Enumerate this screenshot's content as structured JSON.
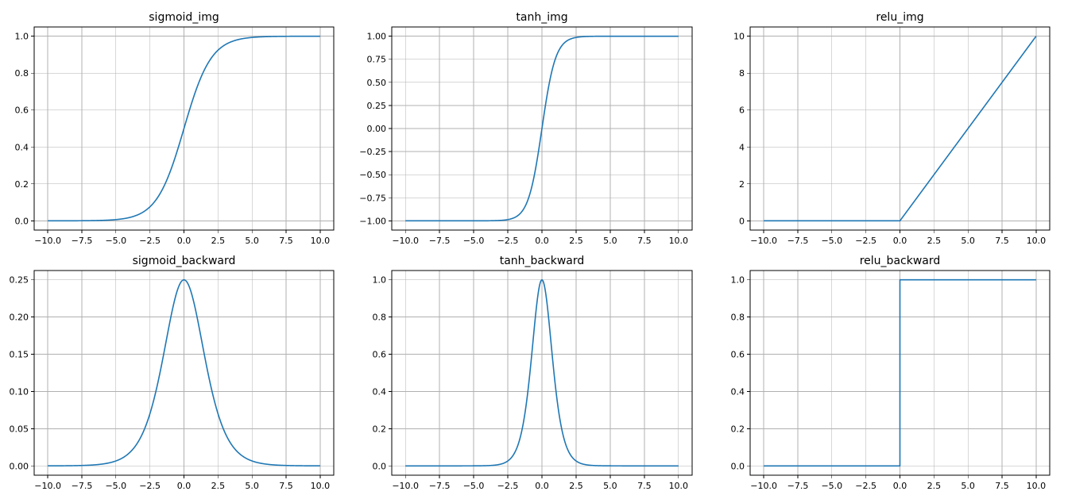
{
  "figure": {
    "background": "#ffffff",
    "line_color": "#1f77b4",
    "grid_color": "#b0b0b0"
  },
  "chart_data": [
    {
      "type": "line",
      "title": "sigmoid_img",
      "function": "sigmoid",
      "x_range": [
        -10,
        10
      ],
      "xlim": [
        -11,
        11
      ],
      "ylim": [
        -0.05,
        1.05
      ],
      "xticks": [
        -10.0,
        -7.5,
        -5.0,
        -2.5,
        0.0,
        2.5,
        5.0,
        7.5,
        10.0
      ],
      "xtick_labels": [
        "−10.0",
        "−7.5",
        "−5.0",
        "−2.5",
        "0.0",
        "2.5",
        "5.0",
        "7.5",
        "10.0"
      ],
      "yticks": [
        0.0,
        0.2,
        0.4,
        0.6,
        0.8,
        1.0
      ],
      "ytick_labels": [
        "0.0",
        "0.2",
        "0.4",
        "0.6",
        "0.8",
        "1.0"
      ],
      "grid": true,
      "series": [
        {
          "values_at_ticks": [
            4.54e-05,
            0.000553,
            0.00669,
            0.0759,
            0.5,
            0.924,
            0.993,
            0.9994,
            0.99995
          ]
        }
      ]
    },
    {
      "type": "line",
      "title": "tanh_img",
      "function": "tanh",
      "x_range": [
        -10,
        10
      ],
      "xlim": [
        -11,
        11
      ],
      "ylim": [
        -1.1,
        1.1
      ],
      "xticks": [
        -10.0,
        -7.5,
        -5.0,
        -2.5,
        0.0,
        2.5,
        5.0,
        7.5,
        10.0
      ],
      "xtick_labels": [
        "−10.0",
        "−7.5",
        "−5.0",
        "−2.5",
        "0.0",
        "2.5",
        "5.0",
        "7.5",
        "10.0"
      ],
      "yticks": [
        -1.0,
        -0.75,
        -0.5,
        -0.25,
        0.0,
        0.25,
        0.5,
        0.75,
        1.0
      ],
      "ytick_labels": [
        "−1.00",
        "−0.75",
        "−0.50",
        "−0.25",
        "0.00",
        "0.25",
        "0.50",
        "0.75",
        "1.00"
      ],
      "grid": true,
      "series": [
        {
          "values_at_ticks": [
            -1.0,
            -1.0,
            -0.9999,
            -0.9866,
            0.0,
            0.9866,
            0.9999,
            1.0,
            1.0
          ]
        }
      ]
    },
    {
      "type": "line",
      "title": "relu_img",
      "function": "relu",
      "x_range": [
        -10,
        10
      ],
      "xlim": [
        -11,
        11
      ],
      "ylim": [
        -0.5,
        10.5
      ],
      "xticks": [
        -10.0,
        -7.5,
        -5.0,
        -2.5,
        0.0,
        2.5,
        5.0,
        7.5,
        10.0
      ],
      "xtick_labels": [
        "−10.0",
        "−7.5",
        "−5.0",
        "−2.5",
        "0.0",
        "2.5",
        "5.0",
        "7.5",
        "10.0"
      ],
      "yticks": [
        0,
        2,
        4,
        6,
        8,
        10
      ],
      "ytick_labels": [
        "0",
        "2",
        "4",
        "6",
        "8",
        "10"
      ],
      "grid": true,
      "series": [
        {
          "values_at_ticks": [
            0,
            0,
            0,
            0,
            0,
            2.5,
            5,
            7.5,
            10
          ]
        }
      ]
    },
    {
      "type": "line",
      "title": "sigmoid_backward",
      "function": "sigmoid_backward",
      "x_range": [
        -10,
        10
      ],
      "xlim": [
        -11,
        11
      ],
      "ylim": [
        -0.0125,
        0.2625
      ],
      "xticks": [
        -10.0,
        -7.5,
        -5.0,
        -2.5,
        0.0,
        2.5,
        5.0,
        7.5,
        10.0
      ],
      "xtick_labels": [
        "−10.0",
        "−7.5",
        "−5.0",
        "−2.5",
        "0.0",
        "2.5",
        "5.0",
        "7.5",
        "10.0"
      ],
      "yticks": [
        0.0,
        0.05,
        0.1,
        0.15,
        0.2,
        0.25
      ],
      "ytick_labels": [
        "0.00",
        "0.05",
        "0.10",
        "0.15",
        "0.20",
        "0.25"
      ],
      "grid": true,
      "series": [
        {
          "values_at_ticks": [
            4.54e-05,
            0.000553,
            0.00665,
            0.0701,
            0.25,
            0.0701,
            0.00665,
            0.000553,
            4.54e-05
          ]
        }
      ]
    },
    {
      "type": "line",
      "title": "tanh_backward",
      "function": "tanh_backward",
      "x_range": [
        -10,
        10
      ],
      "xlim": [
        -11,
        11
      ],
      "ylim": [
        -0.05,
        1.05
      ],
      "xticks": [
        -10.0,
        -7.5,
        -5.0,
        -2.5,
        0.0,
        2.5,
        5.0,
        7.5,
        10.0
      ],
      "xtick_labels": [
        "−10.0",
        "−7.5",
        "−5.0",
        "−2.5",
        "0.0",
        "2.5",
        "5.0",
        "7.5",
        "10.0"
      ],
      "yticks": [
        0.0,
        0.2,
        0.4,
        0.6,
        0.8,
        1.0
      ],
      "ytick_labels": [
        "0.0",
        "0.2",
        "0.4",
        "0.6",
        "0.8",
        "1.0"
      ],
      "grid": true,
      "series": [
        {
          "values_at_ticks": [
            0.0,
            0.0,
            0.00018,
            0.0266,
            1.0,
            0.0266,
            0.00018,
            0.0,
            0.0
          ]
        }
      ]
    },
    {
      "type": "line",
      "title": "relu_backward",
      "function": "relu_backward",
      "x_range": [
        -10,
        10
      ],
      "xlim": [
        -11,
        11
      ],
      "ylim": [
        -0.05,
        1.05
      ],
      "xticks": [
        -10.0,
        -7.5,
        -5.0,
        -2.5,
        0.0,
        2.5,
        5.0,
        7.5,
        10.0
      ],
      "xtick_labels": [
        "−10.0",
        "−7.5",
        "−5.0",
        "−2.5",
        "0.0",
        "2.5",
        "5.0",
        "7.5",
        "10.0"
      ],
      "yticks": [
        0.0,
        0.2,
        0.4,
        0.6,
        0.8,
        1.0
      ],
      "ytick_labels": [
        "0.0",
        "0.2",
        "0.4",
        "0.6",
        "0.8",
        "1.0"
      ],
      "grid": true,
      "series": [
        {
          "values_at_ticks": [
            0,
            0,
            0,
            0,
            1,
            1,
            1,
            1,
            1
          ]
        }
      ]
    }
  ]
}
